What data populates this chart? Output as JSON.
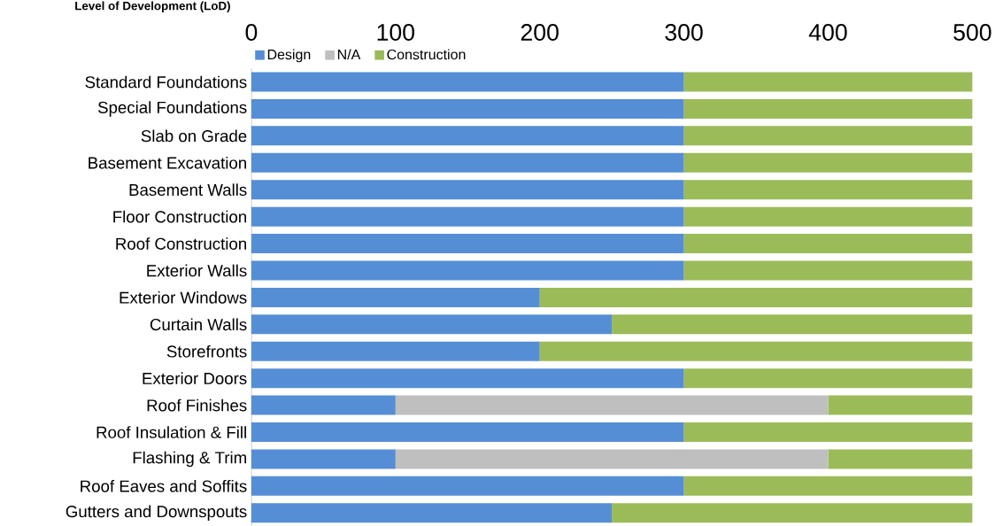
{
  "chart_data": {
    "type": "bar",
    "orientation": "horizontal",
    "stacked": true,
    "xlabel": "Level of Development (LoD)",
    "categories": [
      "Standard Foundations",
      "Special Foundations",
      "Slab on Grade",
      "Basement Excavation",
      "Basement Walls",
      "Floor Construction",
      "Roof Construction",
      "Exterior Walls",
      "Exterior Windows",
      "Curtain Walls",
      "Storefronts",
      "Exterior Doors",
      "Roof Finishes",
      "Roof Insulation & Fill",
      "Flashing & Trim",
      "Roof Eaves and Soffits",
      "Gutters and Downspouts"
    ],
    "series": [
      {
        "name": "Design",
        "color": "#558ed5",
        "values": [
          300,
          300,
          300,
          300,
          300,
          300,
          300,
          300,
          200,
          250,
          200,
          300,
          100,
          300,
          100,
          300,
          250
        ]
      },
      {
        "name": "N/A",
        "color": "#bfbfbf",
        "values": [
          0,
          0,
          0,
          0,
          0,
          0,
          0,
          0,
          0,
          0,
          0,
          0,
          300,
          0,
          300,
          0,
          0
        ]
      },
      {
        "name": "Construction",
        "color": "#9bbb59",
        "values": [
          200,
          200,
          200,
          200,
          200,
          200,
          200,
          200,
          300,
          250,
          300,
          200,
          100,
          200,
          100,
          200,
          250
        ]
      }
    ],
    "xlim": [
      0,
      500
    ],
    "xticks": [
      0,
      100,
      200,
      300,
      400,
      500
    ],
    "legend": "top",
    "grid": false
  }
}
